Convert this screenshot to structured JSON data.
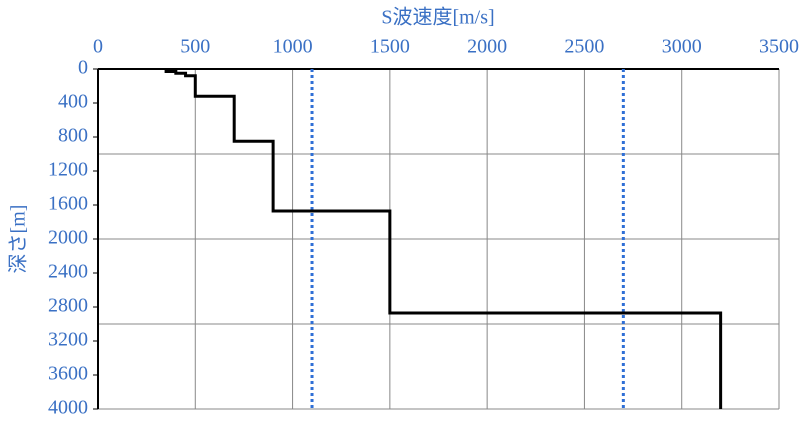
{
  "chart_data": {
    "type": "line",
    "x_label": "S波速度[m/s]",
    "y_label": "深さ[m]",
    "x": [
      350,
      350,
      400,
      400,
      450,
      450,
      500,
      500,
      700,
      700,
      900,
      900,
      1500,
      1500,
      3200,
      3200
    ],
    "series": [
      {
        "color": "#000000",
        "values": [
          10,
          30,
          30,
          50,
          50,
          80,
          80,
          320,
          320,
          850,
          850,
          1670,
          1670,
          2870,
          2870,
          4000
        ]
      }
    ],
    "reference_lines": [
      {
        "x": 1100,
        "color": "#2f6fd6"
      },
      {
        "x": 2700,
        "color": "#2f6fd6"
      }
    ],
    "xlim": [
      0,
      3500
    ],
    "xticks": [
      0,
      500,
      1000,
      1500,
      2000,
      2500,
      3000,
      3500
    ],
    "ylim": [
      0,
      4000
    ],
    "yticks": [
      0,
      400,
      800,
      1200,
      1600,
      2000,
      2400,
      2800,
      3200,
      3600,
      4000
    ],
    "ygrid": [
      1000,
      2000,
      3000,
      4000
    ],
    "y_inverted": true,
    "x_axis_position": "top",
    "label_color": "#3a70c4",
    "grid": true
  }
}
